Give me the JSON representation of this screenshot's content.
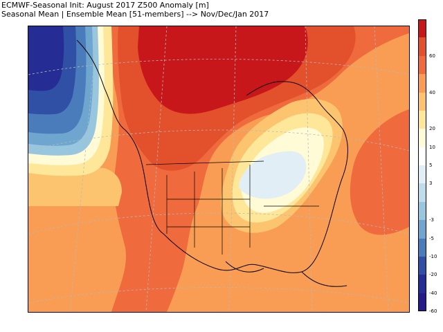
{
  "title": {
    "line1": "ECMWF-Seasonal Init: August 2017 Z500 Anomaly [m]",
    "line2": "Seasonal Mean | Ensemble Mean [51-members] --> Nov/Dec/Jan 2017"
  },
  "colorbar": {
    "segments": [
      {
        "color": "#c8171a"
      },
      {
        "color": "#e2502c"
      },
      {
        "color": "#ef6a3d"
      },
      {
        "color": "#f89d53"
      },
      {
        "color": "#fcc46e"
      },
      {
        "color": "#ffe79a"
      },
      {
        "color": "#fffbd6"
      },
      {
        "color": "#ffffff"
      },
      {
        "color": "#e2eef5"
      },
      {
        "color": "#bfdcea"
      },
      {
        "color": "#98c6df"
      },
      {
        "color": "#6fa6d0"
      },
      {
        "color": "#4a7cbc"
      },
      {
        "color": "#3050a6"
      },
      {
        "color": "#252c94"
      },
      {
        "color": "#241a8a"
      }
    ],
    "labels": [
      "60",
      "40",
      "20",
      "10",
      "5",
      "3",
      "-3",
      "-5",
      "-10",
      "-20",
      "-40",
      "-60"
    ]
  }
}
